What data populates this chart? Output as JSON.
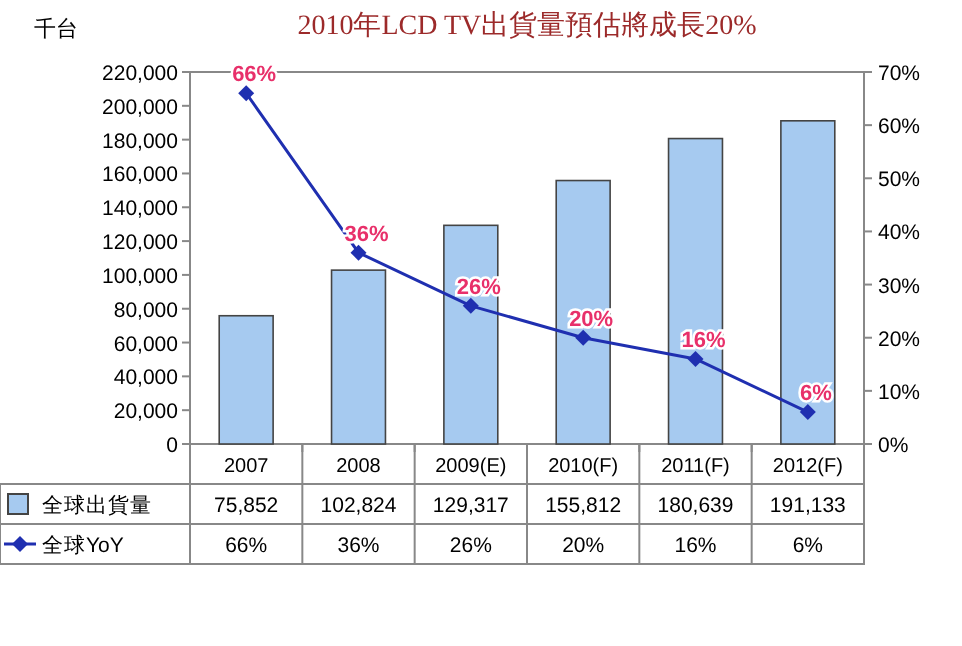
{
  "chart_data": {
    "type": "bar",
    "title": "2010年LCD TV出貨量預估將成長20%",
    "ylabel": "千台",
    "categories": [
      "2007",
      "2008",
      "2009(E)",
      "2010(F)",
      "2011(F)",
      "2012(F)"
    ],
    "series": [
      {
        "name": "全球出貨量",
        "color": "#a6caf0",
        "values": [
          75852,
          102824,
          129317,
          155812,
          180639,
          191133
        ],
        "value_labels": [
          "75,852",
          "102,824",
          "129,317",
          "155,812",
          "180,639",
          "191,133"
        ]
      },
      {
        "name": "全球YoY",
        "type": "line",
        "axis": "y2",
        "color": "#1f2fb0",
        "marker": "diamond",
        "values": [
          66,
          36,
          26,
          20,
          16,
          6
        ],
        "value_labels": [
          "66%",
          "36%",
          "26%",
          "20%",
          "16%",
          "6%"
        ]
      }
    ],
    "ylim": [
      0,
      220000
    ],
    "yticks": [
      0,
      {
        "value": 20000,
        "label": "20,000"
      },
      {
        "value": 40000,
        "label": "40,000"
      },
      {
        "value": 60000,
        "label": "60,000"
      },
      {
        "value": 80000,
        "label": "80,000"
      },
      {
        "value": 100000,
        "label": "100,000"
      },
      {
        "value": 120000,
        "label": "120,000"
      },
      {
        "value": 140000,
        "label": "140,000"
      },
      {
        "value": 160000,
        "label": "160,000"
      },
      {
        "value": 180000,
        "label": "180,000"
      },
      {
        "value": 200000,
        "label": "200,000"
      },
      {
        "value": 220000,
        "label": "220,000"
      }
    ],
    "y2lim": [
      0,
      70
    ],
    "y2ticks": [
      {
        "value": 0,
        "label": "0%"
      },
      {
        "value": 10,
        "label": "10%"
      },
      {
        "value": 20,
        "label": "20%"
      },
      {
        "value": 30,
        "label": "30%"
      },
      {
        "value": 40,
        "label": "40%"
      },
      {
        "value": 50,
        "label": "50%"
      },
      {
        "value": 60,
        "label": "60%"
      },
      {
        "value": 70,
        "label": "70%"
      }
    ],
    "grid": false,
    "legend": "bottom"
  }
}
